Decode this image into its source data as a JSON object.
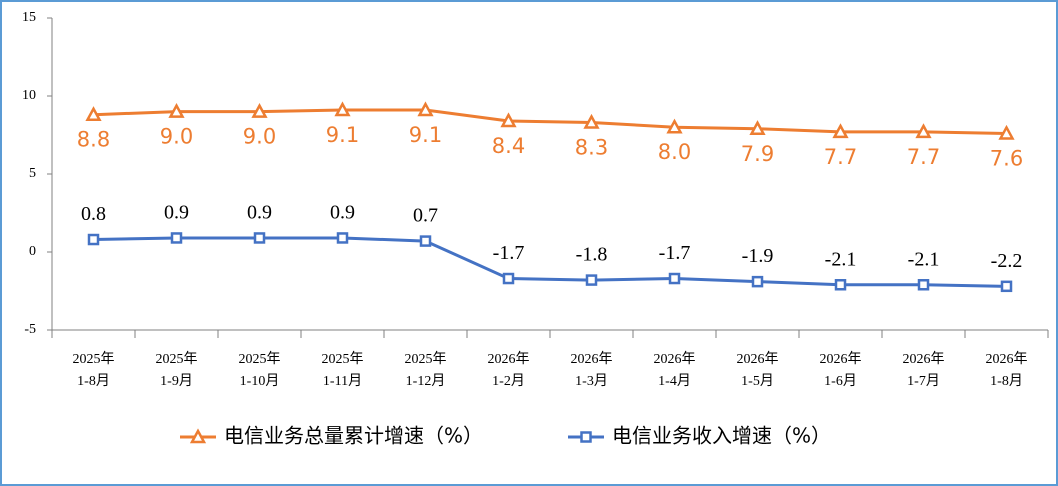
{
  "chart_data": {
    "type": "line",
    "categories": [
      [
        "2025年",
        "1-8月"
      ],
      [
        "2025年",
        "1-9月"
      ],
      [
        "2025年",
        "1-10月"
      ],
      [
        "2025年",
        "1-11月"
      ],
      [
        "2025年",
        "1-12月"
      ],
      [
        "2026年",
        "1-2月"
      ],
      [
        "2026年",
        "1-3月"
      ],
      [
        "2026年",
        "1-4月"
      ],
      [
        "2026年",
        "1-5月"
      ],
      [
        "2026年",
        "1-6月"
      ],
      [
        "2026年",
        "1-7月"
      ],
      [
        "2026年",
        "1-8月"
      ]
    ],
    "series": [
      {
        "name": "电信业务总量累计增速（%）",
        "color": "#ED7D31",
        "marker": "triangle",
        "values": [
          8.8,
          9.0,
          9.0,
          9.1,
          9.1,
          8.4,
          8.3,
          8.0,
          7.9,
          7.7,
          7.7,
          7.6
        ],
        "value_labels": [
          "8.8",
          "9.0",
          "9.0",
          "9.1",
          "9.1",
          "8.4",
          "8.3",
          "8.0",
          "7.9",
          "7.7",
          "7.7",
          "7.6"
        ]
      },
      {
        "name": "电信业务收入增速（%）",
        "color": "#4472C4",
        "marker": "square",
        "values": [
          0.8,
          0.9,
          0.9,
          0.9,
          0.7,
          -1.7,
          -1.8,
          -1.7,
          -1.9,
          -2.1,
          -2.1,
          -2.2
        ]
      }
    ],
    "ylim": [
      -5,
      15
    ],
    "yticks": [
      -5,
      0,
      5,
      10,
      15
    ],
    "grid": false,
    "legend": "bottom"
  }
}
